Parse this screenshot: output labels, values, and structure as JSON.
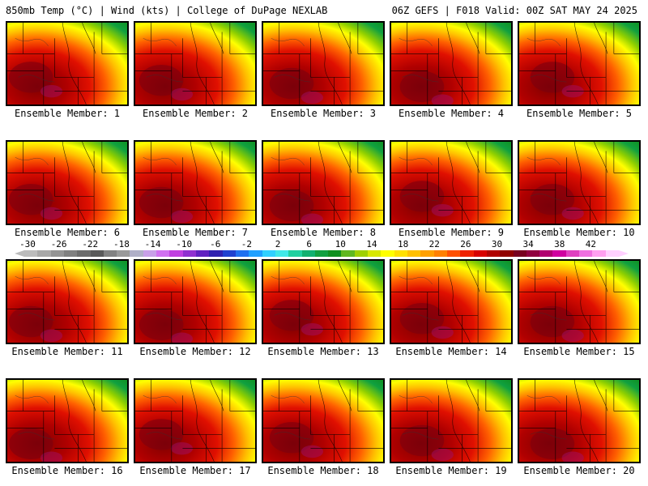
{
  "header": {
    "left": "850mb Temp (°C) | Wind (kts) | College of DuPage NEXLAB",
    "right": "06Z GEFS | F018 Valid: 00Z SAT MAY 24 2025"
  },
  "panels": [
    {
      "label": "Ensemble Member: 1"
    },
    {
      "label": "Ensemble Member: 2"
    },
    {
      "label": "Ensemble Member: 3"
    },
    {
      "label": "Ensemble Member: 4"
    },
    {
      "label": "Ensemble Member: 5"
    },
    {
      "label": "Ensemble Member: 6"
    },
    {
      "label": "Ensemble Member: 7"
    },
    {
      "label": "Ensemble Member: 8"
    },
    {
      "label": "Ensemble Member: 9"
    },
    {
      "label": "Ensemble Member: 10"
    },
    {
      "label": "Ensemble Member: 11"
    },
    {
      "label": "Ensemble Member: 12"
    },
    {
      "label": "Ensemble Member: 13"
    },
    {
      "label": "Ensemble Member: 14"
    },
    {
      "label": "Ensemble Member: 15"
    },
    {
      "label": "Ensemble Member: 16"
    },
    {
      "label": "Ensemble Member: 17"
    },
    {
      "label": "Ensemble Member: 18"
    },
    {
      "label": "Ensemble Member: 19"
    },
    {
      "label": "Ensemble Member: 20"
    }
  ],
  "colorbar": {
    "ticks": [
      "-30",
      "-26",
      "-22",
      "-18",
      "-14",
      "-10",
      "-6",
      "-2",
      "2",
      "6",
      "10",
      "14",
      "18",
      "22",
      "26",
      "30",
      "34",
      "38",
      "42"
    ],
    "colors": [
      "#bcbcbc",
      "#a8a8a8",
      "#949494",
      "#808080",
      "#6c6c6c",
      "#5a5a5a",
      "#828282",
      "#9a9a9a",
      "#b0b0c8",
      "#c8a0e8",
      "#d070f0",
      "#c040e0",
      "#9030d0",
      "#6020c0",
      "#3020b0",
      "#2040d0",
      "#2070f0",
      "#20a0ff",
      "#30d0ff",
      "#40e8e8",
      "#20d0a0",
      "#10b070",
      "#10a040",
      "#109020",
      "#60b820",
      "#a0d000",
      "#d8e800",
      "#ffff00",
      "#ffe000",
      "#ffc000",
      "#ffa000",
      "#ff8000",
      "#ff5000",
      "#f02000",
      "#d80000",
      "#b00000",
      "#900000",
      "#780020",
      "#900040",
      "#b00070",
      "#d000a0",
      "#e040c0",
      "#f070e0",
      "#ffa0f0",
      "#ffd0ff"
    ]
  },
  "legend_colors": {
    "cold": "#30d8ff",
    "mild": "#10a040",
    "warm": "#ffff00",
    "hot": "#e01000",
    "very_hot": "#800000"
  }
}
